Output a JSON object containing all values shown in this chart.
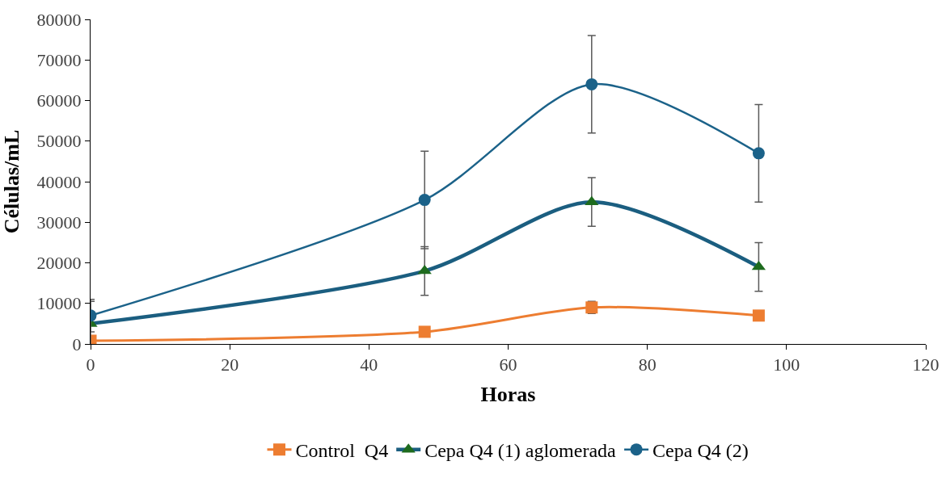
{
  "chart_data": {
    "type": "line",
    "xlabel": "Horas",
    "ylabel": "Células/mL",
    "x": [
      0,
      48,
      72,
      96
    ],
    "xlim": [
      0,
      120
    ],
    "xticks": [
      0,
      20,
      40,
      60,
      80,
      100,
      120
    ],
    "ylim": [
      0,
      80000
    ],
    "yticks": [
      0,
      10000,
      20000,
      30000,
      40000,
      50000,
      60000,
      70000,
      80000
    ],
    "legend": "bottom",
    "series": [
      {
        "name": "Control  Q4",
        "color": "#ed7d31",
        "marker": "square",
        "values": [
          800,
          3000,
          9000,
          7000
        ],
        "errors": [
          null,
          null,
          1500,
          null
        ]
      },
      {
        "name": "Cepa Q4 (1) aglomerada",
        "color": "#1b5e80",
        "marker": "triangle",
        "values": [
          5000,
          18000,
          35000,
          19000
        ],
        "errors": [
          5500,
          6000,
          6000,
          6000
        ]
      },
      {
        "name": "Cepa Q4 (2)",
        "color": "#1b6289",
        "marker": "circle",
        "values": [
          7000,
          35500,
          64000,
          47000
        ],
        "errors": [
          4000,
          12000,
          12000,
          12000
        ]
      }
    ]
  }
}
